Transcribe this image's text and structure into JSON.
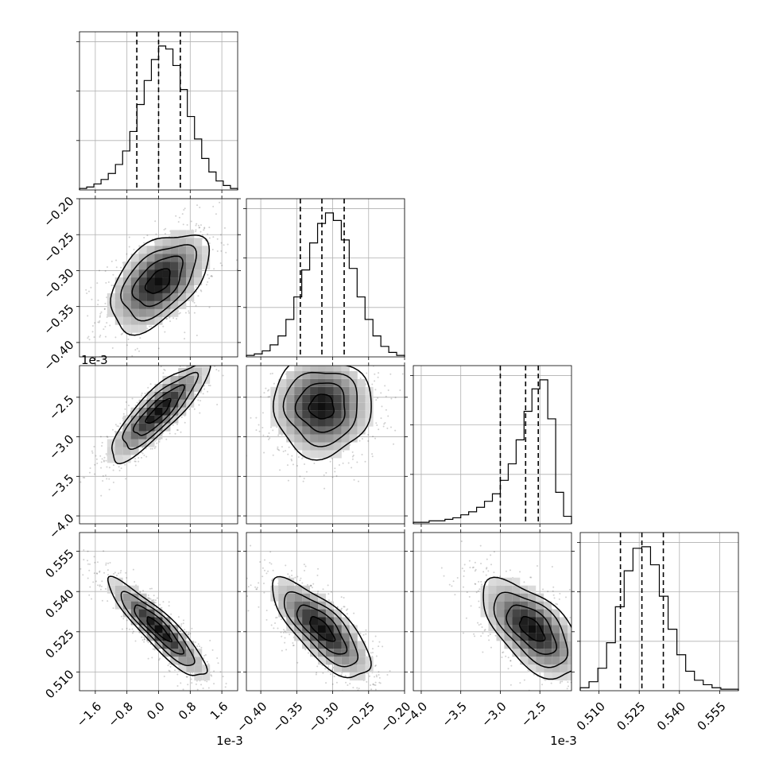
{
  "chart_data": {
    "type": "corner",
    "num_params": 4,
    "params": [
      {
        "range": [
          -2.0,
          2.0
        ],
        "ticks": [
          -1.6,
          -0.8,
          0.0,
          0.8,
          1.6
        ],
        "tick_labels": [
          "-1.6",
          "-0.8",
          "0.0",
          "0.8",
          "1.6"
        ],
        "offset_text": "1e-3",
        "median": 0.0,
        "quantiles": [
          -0.55,
          0.0,
          0.55
        ]
      },
      {
        "range": [
          -0.42,
          -0.2
        ],
        "ticks": [
          -0.4,
          -0.35,
          -0.3,
          -0.25,
          -0.2
        ],
        "tick_labels": [
          "-0.40",
          "-0.35",
          "-0.30",
          "-0.25",
          "-0.20"
        ],
        "offset_text": "",
        "median": -0.315,
        "quantiles": [
          -0.345,
          -0.315,
          -0.284
        ]
      },
      {
        "range": [
          -4.1,
          -2.1
        ],
        "ticks": [
          -4.0,
          -3.5,
          -3.0,
          -2.5
        ],
        "tick_labels": [
          "-4.0",
          "-3.5",
          "-3.0",
          "-2.5"
        ],
        "offset_text": "1e-3",
        "median": -2.68,
        "quantiles": [
          -3.0,
          -2.68,
          -2.52
        ]
      },
      {
        "range": [
          0.503,
          0.562
        ],
        "ticks": [
          0.51,
          0.525,
          0.54,
          0.555
        ],
        "tick_labels": [
          "0.510",
          "0.525",
          "0.540",
          "0.555"
        ],
        "offset_text": "",
        "median": 0.526,
        "quantiles": [
          0.518,
          0.526,
          0.534
        ]
      }
    ],
    "histograms": [
      {
        "counts": [
          1,
          2,
          4,
          7,
          11,
          17,
          26,
          39,
          57,
          73,
          87,
          96,
          94,
          83,
          67,
          49,
          34,
          21,
          12,
          6,
          3,
          1
        ]
      },
      {
        "counts": [
          1,
          2,
          4,
          8,
          14,
          25,
          40,
          58,
          76,
          89,
          96,
          91,
          78,
          59,
          40,
          25,
          14,
          7,
          3,
          1
        ]
      },
      {
        "counts": [
          1,
          1,
          2,
          2,
          3,
          4,
          6,
          8,
          11,
          15,
          20,
          29,
          40,
          56,
          75,
          90,
          96,
          70,
          21,
          5
        ]
      },
      {
        "counts": [
          2,
          6,
          15,
          32,
          56,
          80,
          95,
          96,
          84,
          63,
          41,
          24,
          13,
          7,
          4,
          2,
          1,
          1
        ]
      }
    ],
    "pairs": [
      {
        "x": 0,
        "y": 1,
        "center": [
          0.0,
          -0.315
        ],
        "corr": 0.5
      },
      {
        "x": 0,
        "y": 2,
        "center": [
          0.0,
          -2.68
        ],
        "corr": 0.85
      },
      {
        "x": 1,
        "y": 2,
        "center": [
          -0.315,
          -2.62
        ],
        "corr": 0.0
      },
      {
        "x": 0,
        "y": 3,
        "center": [
          0.0,
          0.526
        ],
        "corr": -0.9
      },
      {
        "x": 1,
        "y": 3,
        "center": [
          -0.315,
          0.526
        ],
        "corr": -0.75
      },
      {
        "x": 2,
        "y": 3,
        "center": [
          -2.6,
          0.526
        ],
        "corr": -0.6
      }
    ],
    "grid": true
  }
}
